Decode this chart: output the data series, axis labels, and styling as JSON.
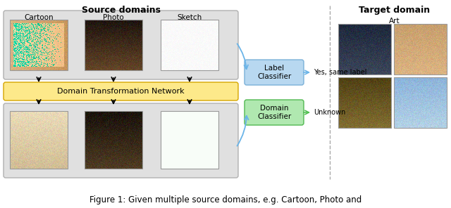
{
  "title": "Figure 1: Given multiple source domains, e.g. Cartoon, Photo and",
  "source_domains_title": "Source domains",
  "target_domain_title": "Target domain",
  "source_labels": [
    "Cartoon",
    "Photo",
    "Sketch"
  ],
  "target_label": "Art",
  "classifier_label": "Label\nClassifier",
  "domain_classifier_label": "Domain\nClassifier",
  "label_output": "Yes, same label",
  "domain_output": "Unknown",
  "dtn_label": "Domain Transformation Network",
  "bg_color": "#ffffff",
  "source_box_color": "#e0e0e0",
  "dtn_box_color": "#fde98a",
  "label_clf_color": "#b8d8f0",
  "domain_clf_color": "#b0e8b0",
  "arrow_color": "#6ab4e8",
  "green_arrow_color": "#50c050",
  "dashed_line_color": "#aaaaaa",
  "font_size_source_title": 9,
  "font_size_target_title": 9,
  "font_size_label": 7.5,
  "font_size_clf": 7.5,
  "font_size_dtn": 8,
  "font_size_caption": 8.5
}
